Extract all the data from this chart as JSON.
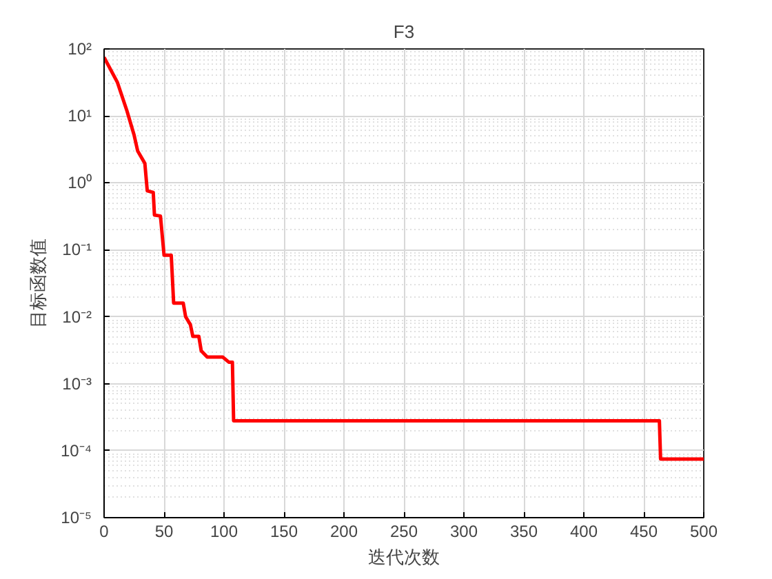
{
  "chart_data": {
    "type": "line",
    "title": "F3",
    "xlabel": "迭代次数",
    "ylabel": "目标函数值",
    "log": "y",
    "grid": true,
    "line_style": "solid",
    "marker": "none",
    "xlim": [
      0,
      500
    ],
    "xticks": [
      0,
      50,
      100,
      150,
      200,
      250,
      300,
      350,
      400,
      450,
      500
    ],
    "ylim": [
      1e-05,
      100
    ],
    "yticks": [
      {
        "value": 1e-05,
        "label": "10⁻⁵"
      },
      {
        "value": 0.0001,
        "label": "10⁻⁴"
      },
      {
        "value": 0.001,
        "label": "10⁻³"
      },
      {
        "value": 0.01,
        "label": "10⁻²"
      },
      {
        "value": 0.1,
        "label": "10⁻¹"
      },
      {
        "value": 1,
        "label": "10⁰"
      },
      {
        "value": 10,
        "label": "10¹"
      },
      {
        "value": 100,
        "label": "10²"
      }
    ],
    "series": [
      {
        "color": "#ff0000",
        "x": [
          0,
          11,
          19,
          25,
          28,
          34,
          36,
          41,
          42,
          47,
          50,
          56,
          58,
          66,
          68,
          72,
          74,
          79,
          81,
          86,
          99,
          104,
          107,
          108,
          463,
          464,
          500
        ],
        "values": [
          75,
          32,
          12,
          5.2,
          3.0,
          1.95,
          0.76,
          0.72,
          0.33,
          0.32,
          0.083,
          0.083,
          0.016,
          0.016,
          0.01,
          0.0076,
          0.0051,
          0.0051,
          0.0031,
          0.0025,
          0.0025,
          0.0021,
          0.0021,
          0.00028,
          0.00028,
          7.5e-05,
          7.5e-05
        ]
      }
    ]
  }
}
